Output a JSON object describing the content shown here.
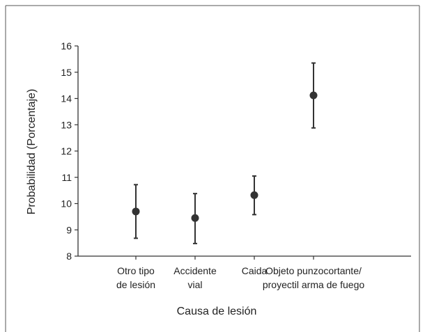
{
  "chart_data": {
    "type": "scatter",
    "title": "",
    "xlabel": "Causa de lesión",
    "ylabel": "Probabilidad (Porcentaje)",
    "ylim": [
      8,
      16
    ],
    "yticks": [
      "8",
      "9",
      "10",
      "11",
      "12",
      "13",
      "14",
      "15",
      "16"
    ],
    "grid": false,
    "categories": [
      [
        "Otro tipo",
        "de lesión"
      ],
      [
        "Accidente",
        "vial"
      ],
      [
        "Caida"
      ],
      [
        "Objeto punzocortante/",
        "proyectil arma de fuego"
      ]
    ],
    "values": [
      9.7,
      9.45,
      10.32,
      14.12
    ],
    "error_low": [
      8.68,
      8.48,
      9.58,
      12.88
    ],
    "error_high": [
      10.72,
      10.38,
      11.05,
      15.35
    ],
    "colors": {
      "marker": "#333333",
      "axis": "#333333",
      "errorbar": "#333333"
    }
  }
}
